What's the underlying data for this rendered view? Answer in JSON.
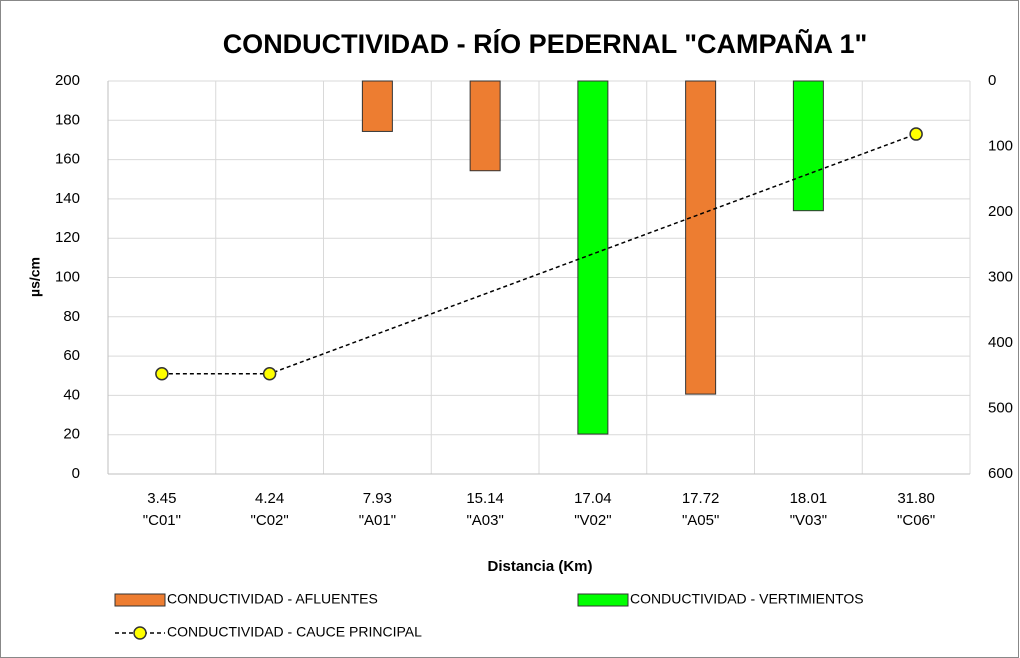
{
  "chart_data": {
    "type": "bar_line",
    "title": "CONDUCTIVIDAD - RÍO PEDERNAL \"CAMPAÑA 1\"",
    "x_label": "Distancia (Km)",
    "y_label": "µs/cm",
    "categories": [
      [
        "3.45",
        "\"C01\""
      ],
      [
        "4.24",
        "\"C02\""
      ],
      [
        "7.93",
        "\"A01\""
      ],
      [
        "15.14",
        "\"A03\""
      ],
      [
        "17.04",
        "\"V02\""
      ],
      [
        "17.72",
        "\"A05\""
      ],
      [
        "18.01",
        "\"V03\""
      ],
      [
        "31.80",
        "\"C06\""
      ]
    ],
    "series": [
      {
        "name": "CONDUCTIVIDAD - AFLUENTES",
        "kind": "bar",
        "axis": "y2",
        "color": "#ED7D31",
        "values": [
          null,
          null,
          77,
          137,
          null,
          478,
          null,
          null
        ]
      },
      {
        "name": "CONDUCTIVIDAD - VERTIMIENTOS",
        "kind": "bar",
        "axis": "y2",
        "color": "#00FF00",
        "values": [
          null,
          null,
          null,
          null,
          539,
          null,
          198,
          null
        ]
      },
      {
        "name": "CONDUCTIVIDAD - CAUCE  PRINCIPAL",
        "kind": "line",
        "axis": "y",
        "color": "#000000",
        "marker_color": "#FFFF00",
        "span_gaps": true,
        "values": [
          51,
          51,
          null,
          null,
          null,
          null,
          null,
          173
        ]
      }
    ],
    "ylim": [
      0,
      200
    ],
    "yticks": [
      0,
      20,
      40,
      60,
      80,
      100,
      120,
      140,
      160,
      180,
      200
    ],
    "y2lim": [
      0,
      600
    ],
    "y2ticks": [
      0,
      100,
      200,
      300,
      400,
      500,
      600
    ],
    "y2_inverted": true,
    "grid": true
  }
}
